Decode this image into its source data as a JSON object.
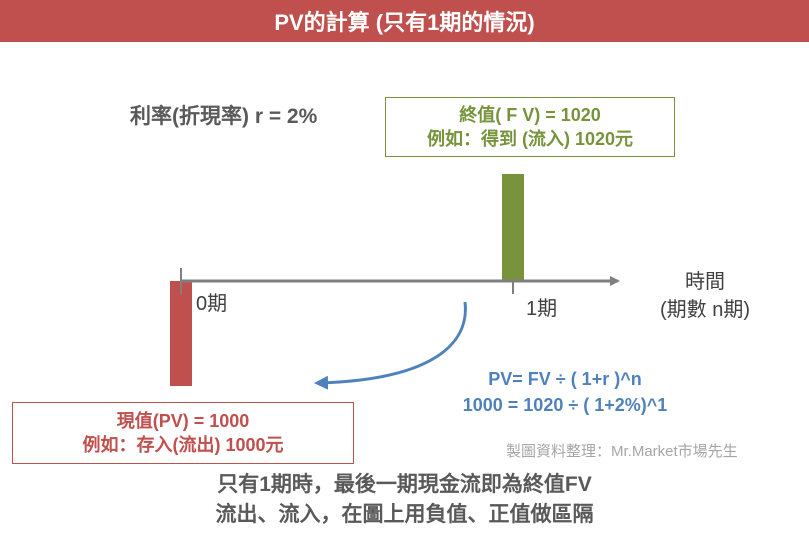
{
  "title": "PV的計算 (只有1期的情況)",
  "rate_label": "利率(折現率) r = 2%",
  "fv_box": {
    "line1": "終值( F V) = 1020",
    "line2": "例如：得到 (流入) 1020元"
  },
  "pv_box": {
    "line1": "現值(PV) = 1000",
    "line2": "例如：存入(流出) 1000元"
  },
  "axis": {
    "tick0": "0期",
    "tick1": "1期",
    "label_line1": "時間",
    "label_line2": "(期數 n期)"
  },
  "formula": {
    "line1": "PV= FV ÷ ( 1+r )^n",
    "line2": "1000 = 1020 ÷ ( 1+2%)^1"
  },
  "source": "製圖資料整理：Mr.Market市場先生",
  "note": {
    "line1": "只有1期時，最後一期現金流即為終值FV",
    "line2": "流出、流入，在圖上用負值、正值做區隔"
  },
  "colors": {
    "title_bg": "#c0504d",
    "outflow": "#c0504d",
    "inflow": "#77933c",
    "formula": "#4f81bd",
    "axis": "#7f7f7f"
  }
}
